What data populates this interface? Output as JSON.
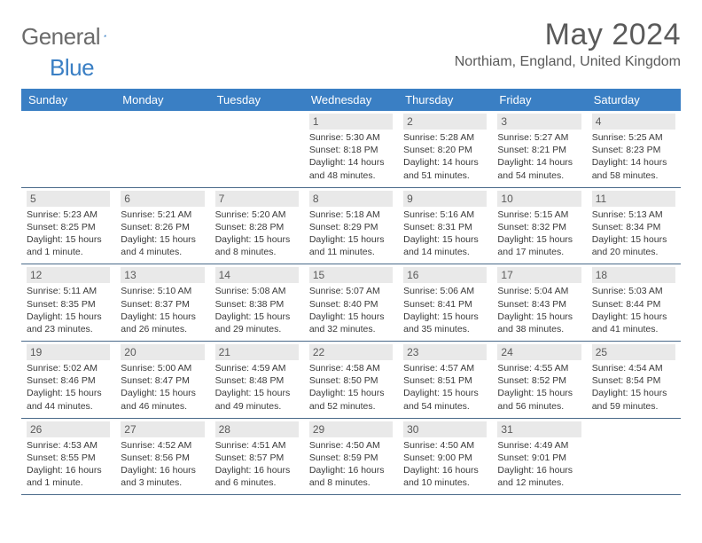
{
  "logo": {
    "word1": "General",
    "word2": "Blue"
  },
  "title": "May 2024",
  "location": "Northiam, England, United Kingdom",
  "day_headers": [
    "Sunday",
    "Monday",
    "Tuesday",
    "Wednesday",
    "Thursday",
    "Friday",
    "Saturday"
  ],
  "colors": {
    "header_bg": "#3a7fc4",
    "header_text": "#ffffff",
    "daynum_bg": "#e9e9e9",
    "text_gray": "#5a5a5a",
    "body_text": "#3a3a3a",
    "rule": "#4a6a8a",
    "logo_gray": "#6b6b6b",
    "logo_blue": "#3a7fc4"
  },
  "weeks": [
    [
      null,
      null,
      null,
      {
        "n": "1",
        "sr": "5:30 AM",
        "ss": "8:18 PM",
        "dl": "14 hours and 48 minutes."
      },
      {
        "n": "2",
        "sr": "5:28 AM",
        "ss": "8:20 PM",
        "dl": "14 hours and 51 minutes."
      },
      {
        "n": "3",
        "sr": "5:27 AM",
        "ss": "8:21 PM",
        "dl": "14 hours and 54 minutes."
      },
      {
        "n": "4",
        "sr": "5:25 AM",
        "ss": "8:23 PM",
        "dl": "14 hours and 58 minutes."
      }
    ],
    [
      {
        "n": "5",
        "sr": "5:23 AM",
        "ss": "8:25 PM",
        "dl": "15 hours and 1 minute."
      },
      {
        "n": "6",
        "sr": "5:21 AM",
        "ss": "8:26 PM",
        "dl": "15 hours and 4 minutes."
      },
      {
        "n": "7",
        "sr": "5:20 AM",
        "ss": "8:28 PM",
        "dl": "15 hours and 8 minutes."
      },
      {
        "n": "8",
        "sr": "5:18 AM",
        "ss": "8:29 PM",
        "dl": "15 hours and 11 minutes."
      },
      {
        "n": "9",
        "sr": "5:16 AM",
        "ss": "8:31 PM",
        "dl": "15 hours and 14 minutes."
      },
      {
        "n": "10",
        "sr": "5:15 AM",
        "ss": "8:32 PM",
        "dl": "15 hours and 17 minutes."
      },
      {
        "n": "11",
        "sr": "5:13 AM",
        "ss": "8:34 PM",
        "dl": "15 hours and 20 minutes."
      }
    ],
    [
      {
        "n": "12",
        "sr": "5:11 AM",
        "ss": "8:35 PM",
        "dl": "15 hours and 23 minutes."
      },
      {
        "n": "13",
        "sr": "5:10 AM",
        "ss": "8:37 PM",
        "dl": "15 hours and 26 minutes."
      },
      {
        "n": "14",
        "sr": "5:08 AM",
        "ss": "8:38 PM",
        "dl": "15 hours and 29 minutes."
      },
      {
        "n": "15",
        "sr": "5:07 AM",
        "ss": "8:40 PM",
        "dl": "15 hours and 32 minutes."
      },
      {
        "n": "16",
        "sr": "5:06 AM",
        "ss": "8:41 PM",
        "dl": "15 hours and 35 minutes."
      },
      {
        "n": "17",
        "sr": "5:04 AM",
        "ss": "8:43 PM",
        "dl": "15 hours and 38 minutes."
      },
      {
        "n": "18",
        "sr": "5:03 AM",
        "ss": "8:44 PM",
        "dl": "15 hours and 41 minutes."
      }
    ],
    [
      {
        "n": "19",
        "sr": "5:02 AM",
        "ss": "8:46 PM",
        "dl": "15 hours and 44 minutes."
      },
      {
        "n": "20",
        "sr": "5:00 AM",
        "ss": "8:47 PM",
        "dl": "15 hours and 46 minutes."
      },
      {
        "n": "21",
        "sr": "4:59 AM",
        "ss": "8:48 PM",
        "dl": "15 hours and 49 minutes."
      },
      {
        "n": "22",
        "sr": "4:58 AM",
        "ss": "8:50 PM",
        "dl": "15 hours and 52 minutes."
      },
      {
        "n": "23",
        "sr": "4:57 AM",
        "ss": "8:51 PM",
        "dl": "15 hours and 54 minutes."
      },
      {
        "n": "24",
        "sr": "4:55 AM",
        "ss": "8:52 PM",
        "dl": "15 hours and 56 minutes."
      },
      {
        "n": "25",
        "sr": "4:54 AM",
        "ss": "8:54 PM",
        "dl": "15 hours and 59 minutes."
      }
    ],
    [
      {
        "n": "26",
        "sr": "4:53 AM",
        "ss": "8:55 PM",
        "dl": "16 hours and 1 minute."
      },
      {
        "n": "27",
        "sr": "4:52 AM",
        "ss": "8:56 PM",
        "dl": "16 hours and 3 minutes."
      },
      {
        "n": "28",
        "sr": "4:51 AM",
        "ss": "8:57 PM",
        "dl": "16 hours and 6 minutes."
      },
      {
        "n": "29",
        "sr": "4:50 AM",
        "ss": "8:59 PM",
        "dl": "16 hours and 8 minutes."
      },
      {
        "n": "30",
        "sr": "4:50 AM",
        "ss": "9:00 PM",
        "dl": "16 hours and 10 minutes."
      },
      {
        "n": "31",
        "sr": "4:49 AM",
        "ss": "9:01 PM",
        "dl": "16 hours and 12 minutes."
      },
      null
    ]
  ],
  "labels": {
    "sunrise": "Sunrise:",
    "sunset": "Sunset:",
    "daylight": "Daylight:"
  }
}
